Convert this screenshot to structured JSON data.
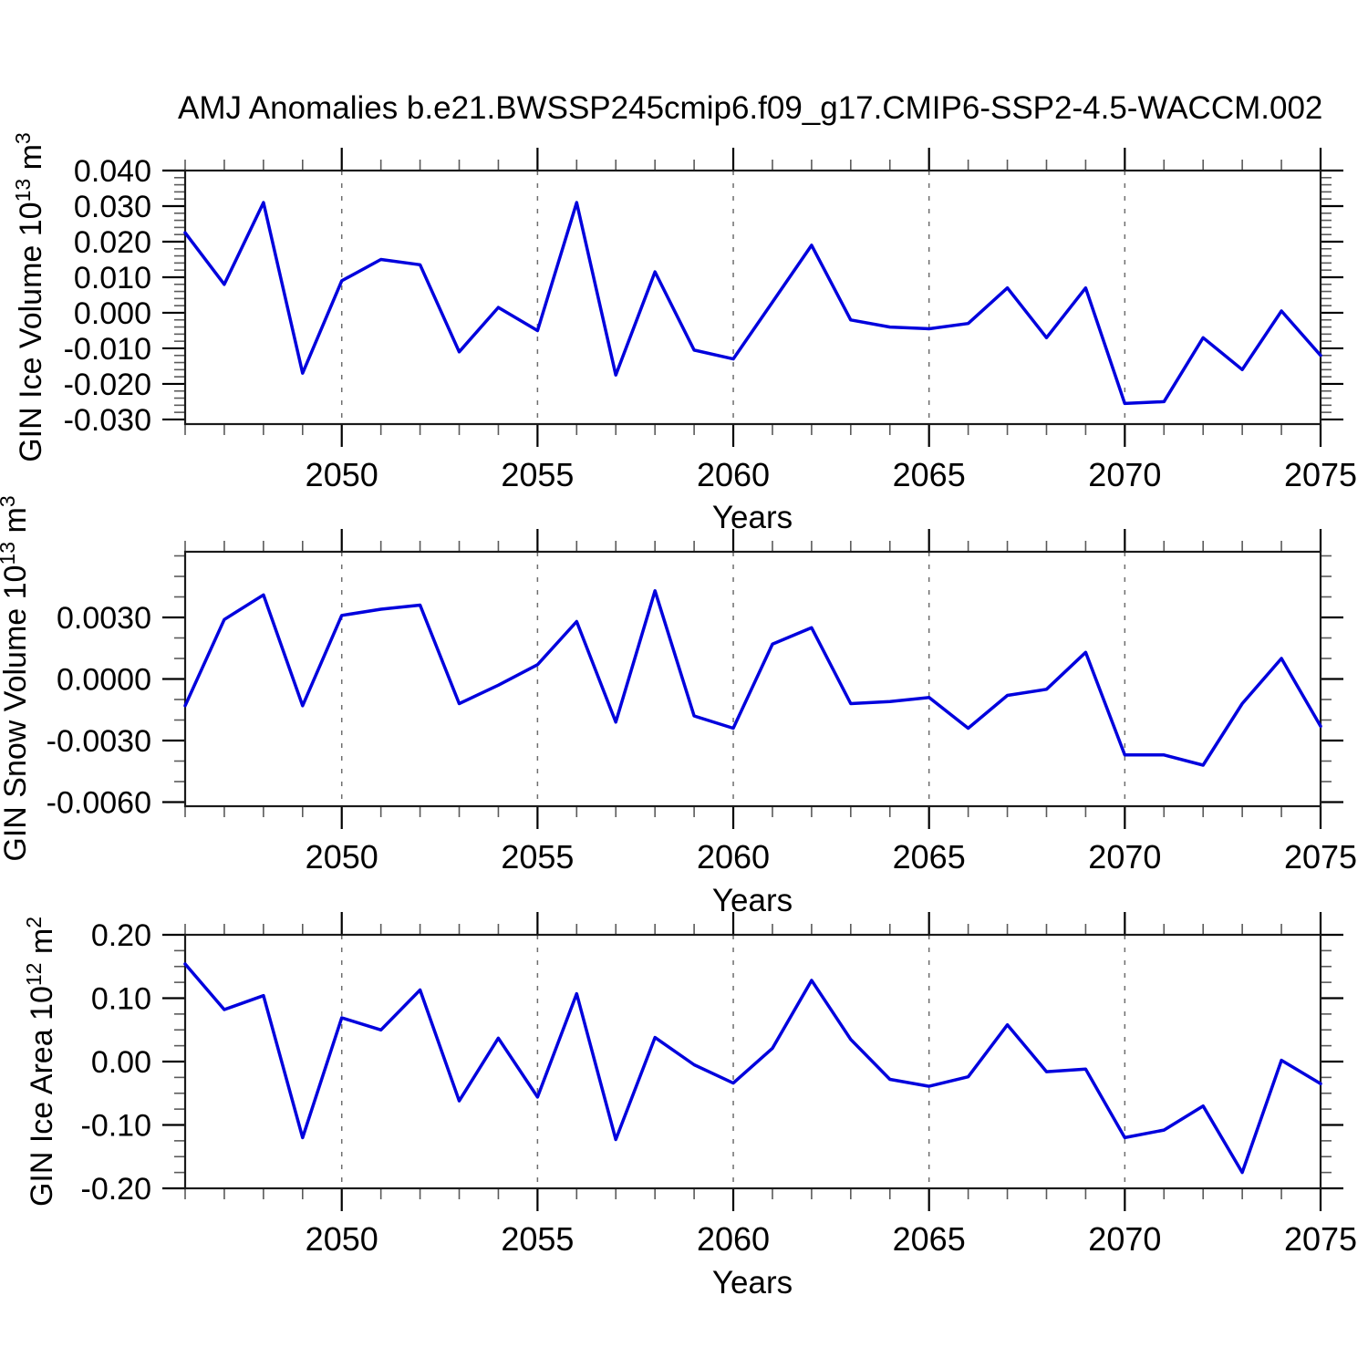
{
  "title": "AMJ Anomalies b.e21.BWSSP245cmip6.f09_g17.CMIP6-SSP2-4.5-WACCM.002",
  "colors": {
    "line": "#0000dd",
    "grid": "#6e6e6e",
    "axis": "#1a1a1a",
    "major_tick": "#000000",
    "minor_tick": "#5a5a5a",
    "text": "#000000",
    "background": "#ffffff"
  },
  "x_axis": {
    "label": "Years",
    "range": [
      2046,
      2075
    ],
    "tick_values": [
      2050,
      2055,
      2060,
      2065,
      2070,
      2075
    ],
    "tick_labels": [
      "2050",
      "2055",
      "2060",
      "2065",
      "2070",
      "2075"
    ],
    "minor_step": 1,
    "gridlines": [
      2050,
      2055,
      2060,
      2065,
      2070
    ],
    "years": [
      2046,
      2047,
      2048,
      2049,
      2050,
      2051,
      2052,
      2053,
      2054,
      2055,
      2056,
      2057,
      2058,
      2059,
      2060,
      2061,
      2062,
      2063,
      2064,
      2065,
      2066,
      2067,
      2068,
      2069,
      2070,
      2071,
      2072,
      2073,
      2074,
      2075
    ]
  },
  "chart_data": [
    {
      "type": "line",
      "series_name": "GIN Ice Volume",
      "ylabel": "GIN Ice Volume 10^13 m^3",
      "ylabel_parts": [
        "GIN Ice Volume 10",
        "13",
        " m",
        "3"
      ],
      "xlabel": "Years",
      "grid": "x-dashed",
      "legend": "none",
      "x": [
        2046,
        2047,
        2048,
        2049,
        2050,
        2051,
        2052,
        2053,
        2054,
        2055,
        2056,
        2057,
        2058,
        2059,
        2060,
        2061,
        2062,
        2063,
        2064,
        2065,
        2066,
        2067,
        2068,
        2069,
        2070,
        2071,
        2072,
        2073,
        2074,
        2075
      ],
      "values": [
        0.0225,
        0.008,
        0.031,
        -0.017,
        0.009,
        0.015,
        0.0135,
        -0.011,
        0.0015,
        -0.005,
        0.031,
        -0.0175,
        0.0115,
        -0.0105,
        -0.013,
        0.003,
        0.019,
        -0.002,
        -0.004,
        -0.0045,
        -0.003,
        0.007,
        -0.007,
        0.007,
        -0.0255,
        -0.025,
        -0.007,
        -0.016,
        0.0005,
        -0.012
      ],
      "xlim": [
        2046,
        2075
      ],
      "ylim": [
        -0.0313,
        0.04
      ],
      "ytick_values": [
        0.04,
        0.03,
        0.02,
        0.01,
        0.0,
        -0.01,
        -0.02,
        -0.03
      ],
      "ytick_labels": [
        "0.040",
        "0.030",
        "0.020",
        "0.010",
        "0.000",
        "-0.010",
        "-0.020",
        "-0.030"
      ],
      "yminor_step": 0.002
    },
    {
      "type": "line",
      "series_name": "GIN Snow Volume",
      "ylabel": "GIN Snow Volume 10^13 m^3",
      "ylabel_parts": [
        "GIN Snow Volume 10",
        "13",
        " m",
        "3"
      ],
      "xlabel": "Years",
      "grid": "x-dashed",
      "legend": "none",
      "x": [
        2046,
        2047,
        2048,
        2049,
        2050,
        2051,
        2052,
        2053,
        2054,
        2055,
        2056,
        2057,
        2058,
        2059,
        2060,
        2061,
        2062,
        2063,
        2064,
        2065,
        2066,
        2067,
        2068,
        2069,
        2070,
        2071,
        2072,
        2073,
        2074,
        2075
      ],
      "values": [
        -0.0013,
        0.0029,
        0.0041,
        -0.0013,
        0.0031,
        0.0034,
        0.0036,
        -0.0012,
        -0.0003,
        0.0007,
        0.0028,
        -0.0021,
        0.0043,
        -0.0018,
        -0.0024,
        0.0017,
        0.0025,
        -0.0012,
        -0.0011,
        -0.0009,
        -0.0024,
        -0.0008,
        -0.0005,
        0.0013,
        -0.0037,
        -0.0037,
        -0.0042,
        -0.0012,
        0.001,
        -0.0023
      ],
      "xlim": [
        2046,
        2075
      ],
      "ylim": [
        -0.0062,
        0.0062
      ],
      "ytick_values": [
        0.003,
        0.0,
        -0.003,
        -0.006
      ],
      "ytick_labels": [
        "0.0030",
        "0.0000",
        "-0.0030",
        "-0.0060"
      ],
      "yminor_step": 0.001
    },
    {
      "type": "line",
      "series_name": "GIN Ice Area",
      "ylabel": "GIN Ice Area 10^12 m^2",
      "ylabel_parts": [
        "GIN Ice Area 10",
        "12",
        " m",
        "2"
      ],
      "xlabel": "Years",
      "grid": "x-dashed",
      "legend": "none",
      "x": [
        2046,
        2047,
        2048,
        2049,
        2050,
        2051,
        2052,
        2053,
        2054,
        2055,
        2056,
        2057,
        2058,
        2059,
        2060,
        2061,
        2062,
        2063,
        2064,
        2065,
        2066,
        2067,
        2068,
        2069,
        2070,
        2071,
        2072,
        2073,
        2074,
        2075
      ],
      "values": [
        0.154,
        0.082,
        0.104,
        -0.12,
        0.069,
        0.05,
        0.113,
        -0.062,
        0.037,
        -0.056,
        0.107,
        -0.123,
        0.038,
        -0.005,
        -0.034,
        0.021,
        0.128,
        0.035,
        -0.028,
        -0.039,
        -0.024,
        0.058,
        -0.016,
        -0.012,
        -0.12,
        -0.108,
        -0.07,
        -0.175,
        0.002,
        -0.035
      ],
      "xlim": [
        2046,
        2075
      ],
      "ylim": [
        -0.2,
        0.2
      ],
      "ytick_values": [
        0.2,
        0.1,
        0.0,
        -0.1,
        -0.2
      ],
      "ytick_labels": [
        "0.20",
        "0.10",
        "0.00",
        "-0.10",
        "-0.20"
      ],
      "yminor_step": 0.025
    }
  ]
}
